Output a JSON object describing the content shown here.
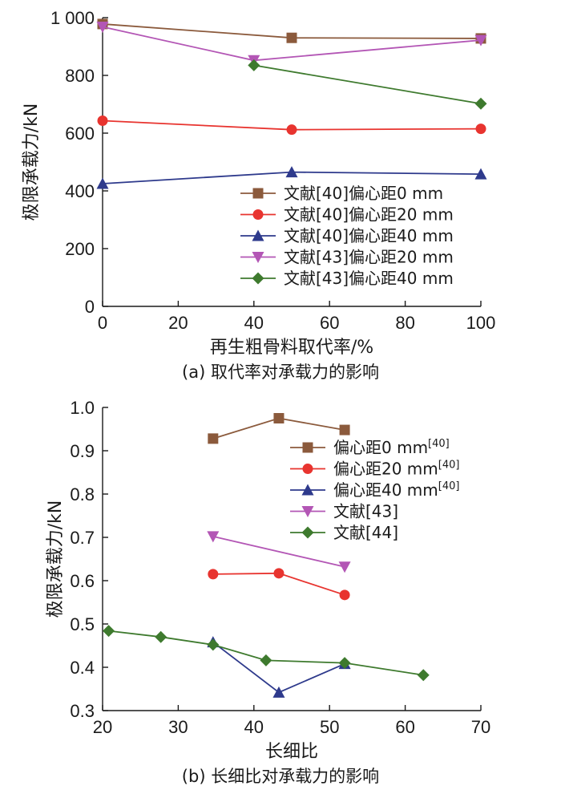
{
  "chart_data": [
    {
      "type": "line",
      "caption": "(a) 取代率对承载力的影响",
      "xlabel": "再生粗骨料取代率/%",
      "ylabel": "极限承载力/kN",
      "xlim": [
        0,
        100
      ],
      "ylim": [
        0,
        1000
      ],
      "xticks": [
        0,
        20,
        40,
        60,
        80,
        100
      ],
      "xtick_labels": [
        "0",
        "20",
        "40",
        "60",
        "80",
        "100"
      ],
      "yticks": [
        0,
        200,
        400,
        600,
        800,
        1000
      ],
      "ytick_labels": [
        "0",
        "200",
        "400",
        "600",
        "800",
        "1 000"
      ],
      "legend_position": "center-right",
      "series": [
        {
          "name": "文献[40]偏心距0 mm",
          "color": "#8b5a3c",
          "marker": "square",
          "x": [
            0,
            50,
            100
          ],
          "y": [
            978,
            930,
            928
          ]
        },
        {
          "name": "文献[40]偏心距20 mm",
          "color": "#e8342f",
          "marker": "circle",
          "x": [
            0,
            50,
            100
          ],
          "y": [
            643,
            612,
            615
          ]
        },
        {
          "name": "文献[40]偏心距40 mm",
          "color": "#2e3a8c",
          "marker": "triangle-up",
          "x": [
            0,
            50,
            100
          ],
          "y": [
            425,
            465,
            458
          ]
        },
        {
          "name": "文献[43]偏心距20 mm",
          "color": "#b356b5",
          "marker": "triangle-down",
          "x": [
            0,
            40,
            100
          ],
          "y": [
            968,
            852,
            922
          ]
        },
        {
          "name": "文献[43]偏心距40 mm",
          "color": "#3e7a2e",
          "marker": "diamond",
          "x": [
            40,
            100
          ],
          "y": [
            835,
            702
          ]
        }
      ]
    },
    {
      "type": "line",
      "caption": "(b) 长细比对承载力的影响",
      "xlabel": "长细比",
      "ylabel": "极限承载力/kN",
      "xlim": [
        20,
        70
      ],
      "ylim": [
        0.3,
        1.0
      ],
      "xticks": [
        20,
        30,
        40,
        50,
        60,
        70
      ],
      "xtick_labels": [
        "20",
        "30",
        "40",
        "50",
        "60",
        "70"
      ],
      "yticks": [
        0.3,
        0.4,
        0.5,
        0.6,
        0.7,
        0.8,
        0.9,
        1.0
      ],
      "ytick_labels": [
        "0.3",
        "0.4",
        "0.5",
        "0.6",
        "0.7",
        "0.8",
        "0.9",
        "1.0"
      ],
      "legend_position": "upper-right",
      "series": [
        {
          "name": "偏心距0 mm",
          "superscript": "[40]",
          "color": "#8b5a3c",
          "marker": "square",
          "x": [
            34.6,
            43.3,
            52.0
          ],
          "y": [
            0.928,
            0.975,
            0.948
          ]
        },
        {
          "name": "偏心距20 mm",
          "superscript": "[40]",
          "color": "#e8342f",
          "marker": "circle",
          "x": [
            34.6,
            43.3,
            52.0
          ],
          "y": [
            0.615,
            0.617,
            0.567
          ]
        },
        {
          "name": "偏心距40 mm",
          "superscript": "[40]",
          "color": "#2e3a8c",
          "marker": "triangle-up",
          "x": [
            34.6,
            43.3,
            52.0
          ],
          "y": [
            0.458,
            0.342,
            0.408
          ]
        },
        {
          "name": "文献[43]",
          "color": "#b356b5",
          "marker": "triangle-down",
          "x": [
            34.6,
            52.0
          ],
          "y": [
            0.702,
            0.632
          ]
        },
        {
          "name": "文献[44]",
          "color": "#3e7a2e",
          "marker": "diamond",
          "x": [
            20.8,
            27.7,
            34.6,
            41.6,
            52.0,
            62.4
          ],
          "y": [
            0.484,
            0.47,
            0.452,
            0.416,
            0.41,
            0.382
          ]
        }
      ]
    }
  ]
}
